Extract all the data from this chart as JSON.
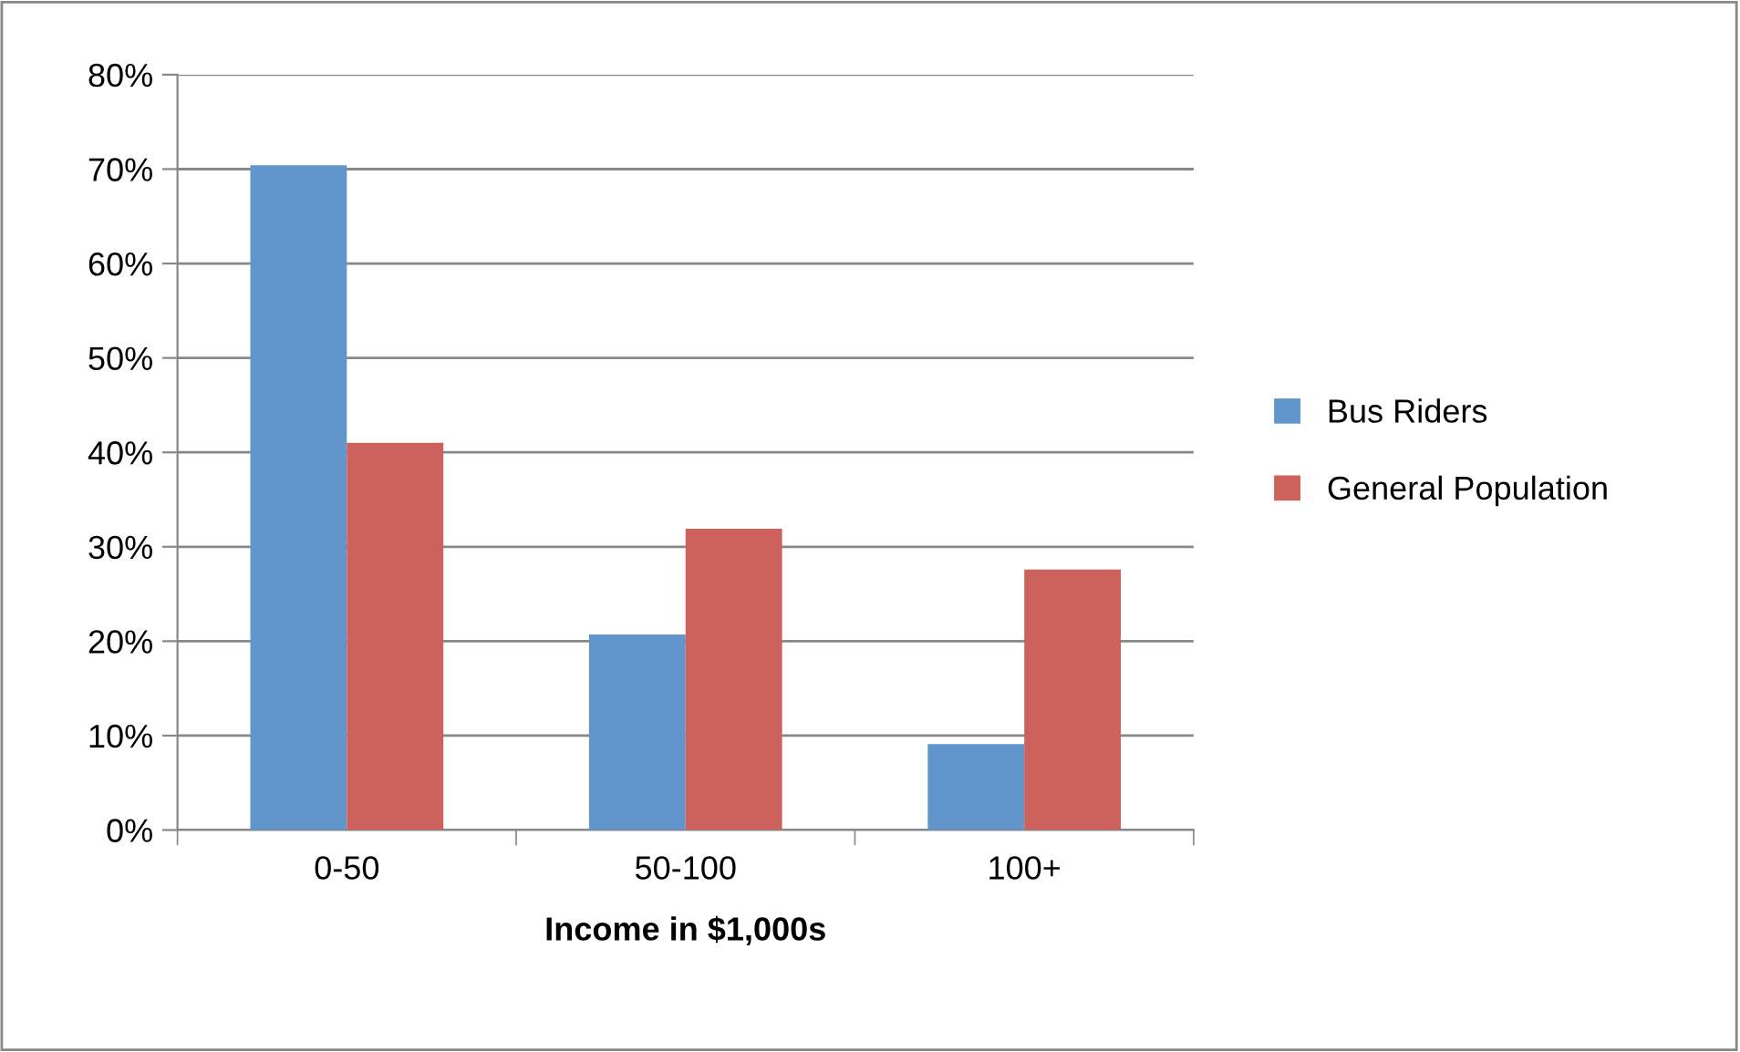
{
  "chart_data": {
    "type": "bar",
    "xlabel": "Income in $1,000s",
    "categories": [
      "0-50",
      "50-100",
      "100+"
    ],
    "series": [
      {
        "name": "Bus Riders",
        "color": "#6096cb",
        "values": [
          70.4,
          20.7,
          9.1
        ]
      },
      {
        "name": "General Population",
        "color": "#cd625c",
        "values": [
          41.0,
          31.9,
          27.6
        ]
      }
    ],
    "ylim": [
      0,
      80
    ],
    "yticks": [
      {
        "value": 0,
        "label": "0%"
      },
      {
        "value": 10,
        "label": "10%"
      },
      {
        "value": 20,
        "label": "20%"
      },
      {
        "value": 30,
        "label": "30%"
      },
      {
        "value": 40,
        "label": "40%"
      },
      {
        "value": 50,
        "label": "50%"
      },
      {
        "value": 60,
        "label": "60%"
      },
      {
        "value": 70,
        "label": "70%"
      },
      {
        "value": 80,
        "label": "80%"
      }
    ],
    "grid": "y",
    "legend": "right"
  }
}
